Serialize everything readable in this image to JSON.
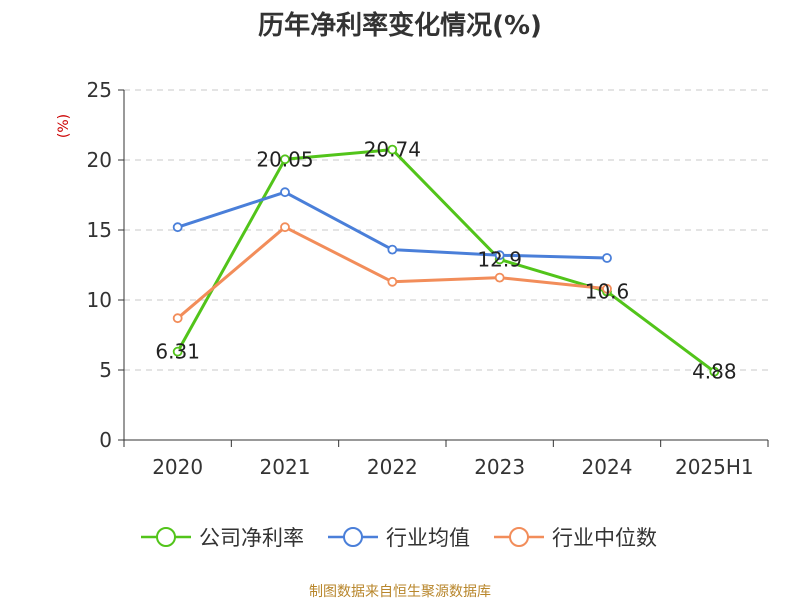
{
  "chart_data": {
    "type": "line",
    "title": "历年净利率变化情况(%)",
    "ylabel": "(%)",
    "xlabel": "",
    "categories": [
      "2020",
      "2021",
      "2022",
      "2023",
      "2024",
      "2025H1"
    ],
    "ylim": [
      0,
      25
    ],
    "yticks": [
      0,
      5,
      10,
      15,
      20,
      25
    ],
    "grid": true,
    "legend_position": "bottom",
    "series": [
      {
        "name": "公司净利率",
        "color": "#52c41a",
        "values": [
          6.31,
          20.05,
          20.74,
          12.9,
          10.6,
          4.88
        ],
        "labels": [
          "6.31",
          "20.05",
          "20.74",
          "12.9",
          "10.6",
          "4.88"
        ]
      },
      {
        "name": "行业均值",
        "color": "#4a7fd9",
        "values": [
          15.2,
          17.7,
          13.6,
          13.2,
          13.0,
          null
        ]
      },
      {
        "name": "行业中位数",
        "color": "#f28d5a",
        "values": [
          8.7,
          15.2,
          11.3,
          11.6,
          10.8,
          null
        ]
      }
    ]
  },
  "source": "制图数据来自恒生聚源数据库"
}
